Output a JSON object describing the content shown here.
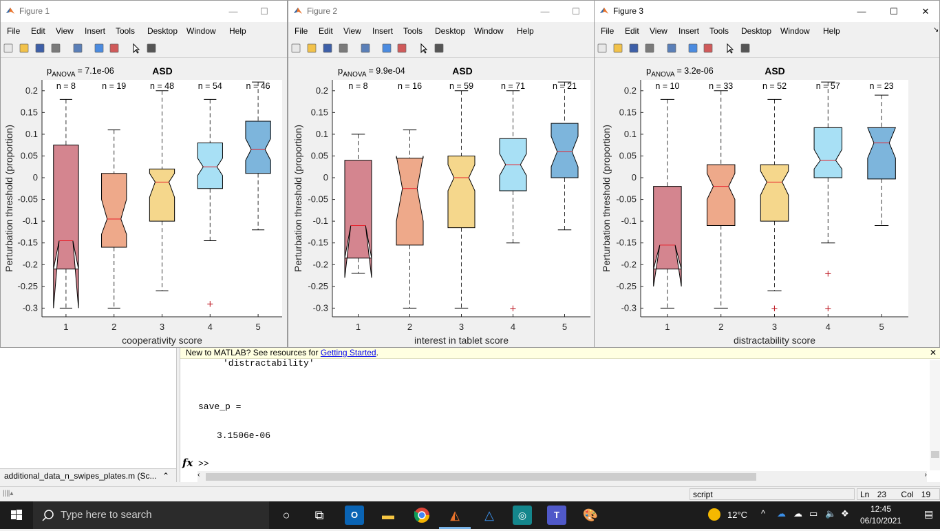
{
  "menus": [
    "File",
    "Edit",
    "View",
    "Insert",
    "Tools",
    "Desktop",
    "Window",
    "Help"
  ],
  "figures": [
    {
      "title": "Figure 1",
      "panel_title": "ASD",
      "p_label": "p",
      "p_sub": "ANOVA",
      "p_value": "= 7.1e-06",
      "xlabel": "cooperativity score",
      "ylabel": "Perturbation threshold (proportion)",
      "chart_data": {
        "type": "box",
        "categories": [
          "1",
          "2",
          "3",
          "4",
          "5"
        ],
        "n_labels": [
          "n = 8",
          "n = 19",
          "n = 48",
          "n = 54",
          "n = 46"
        ],
        "ylim": [
          -0.32,
          0.225
        ],
        "yticks": [
          "0.2",
          "0.15",
          "0.1",
          "0.05",
          "0",
          "-0.05",
          "-0.1",
          "-0.15",
          "-0.2",
          "-0.25",
          "-0.3"
        ],
        "boxes": [
          {
            "whisker_low": -0.3,
            "q1": -0.21,
            "median": -0.145,
            "q3": 0.075,
            "whisker_high": 0.18,
            "notch_low": -0.3,
            "notch_high": -0.21,
            "color": "#d4858f",
            "outliers": []
          },
          {
            "whisker_low": -0.3,
            "q1": -0.16,
            "median": -0.095,
            "q3": 0.01,
            "whisker_high": 0.11,
            "notch_low": -0.13,
            "notch_high": -0.05,
            "color": "#eea98a",
            "outliers": []
          },
          {
            "whisker_low": -0.26,
            "q1": -0.1,
            "median": -0.01,
            "q3": 0.02,
            "whisker_high": 0.2,
            "notch_low": -0.045,
            "notch_high": 0.01,
            "color": "#f5d78c",
            "outliers": []
          },
          {
            "whisker_low": -0.145,
            "q1": -0.025,
            "median": 0.025,
            "q3": 0.08,
            "whisker_high": 0.18,
            "notch_low": 0.005,
            "notch_high": 0.045,
            "color": "#a8e0f5",
            "outliers": [
              -0.29
            ]
          },
          {
            "whisker_low": -0.12,
            "q1": 0.01,
            "median": 0.065,
            "q3": 0.13,
            "whisker_high": 0.22,
            "notch_low": 0.04,
            "notch_high": 0.09,
            "color": "#7db5dc",
            "outliers": []
          }
        ]
      }
    },
    {
      "title": "Figure 2",
      "panel_title": "ASD",
      "p_label": "p",
      "p_sub": "ANOVA",
      "p_value": "= 9.9e-04",
      "xlabel": "interest in tablet score",
      "ylabel": "Perturbation threshold (proportion)",
      "chart_data": {
        "type": "box",
        "categories": [
          "1",
          "2",
          "3",
          "4",
          "5"
        ],
        "n_labels": [
          "n = 8",
          "n = 16",
          "n = 59",
          "n = 71",
          "n = 21"
        ],
        "ylim": [
          -0.32,
          0.225
        ],
        "yticks": [
          "0.2",
          "0.15",
          "0.1",
          "0.05",
          "0",
          "-0.05",
          "-0.1",
          "-0.15",
          "-0.2",
          "-0.25",
          "-0.3"
        ],
        "boxes": [
          {
            "whisker_low": -0.22,
            "q1": -0.185,
            "median": -0.11,
            "q3": 0.04,
            "whisker_high": 0.1,
            "notch_low": -0.23,
            "notch_high": -0.185,
            "color": "#d4858f",
            "outliers": []
          },
          {
            "whisker_low": -0.3,
            "q1": -0.155,
            "median": -0.025,
            "q3": 0.045,
            "whisker_high": 0.11,
            "notch_low": -0.1,
            "notch_high": 0.05,
            "color": "#eea98a",
            "outliers": []
          },
          {
            "whisker_low": -0.3,
            "q1": -0.115,
            "median": 0.0,
            "q3": 0.05,
            "whisker_high": 0.2,
            "notch_low": -0.03,
            "notch_high": 0.03,
            "color": "#f5d78c",
            "outliers": []
          },
          {
            "whisker_low": -0.15,
            "q1": -0.03,
            "median": 0.03,
            "q3": 0.09,
            "whisker_high": 0.2,
            "notch_low": 0.005,
            "notch_high": 0.055,
            "color": "#a8e0f5",
            "outliers": [
              -0.3
            ]
          },
          {
            "whisker_low": -0.12,
            "q1": 0.0,
            "median": 0.06,
            "q3": 0.125,
            "whisker_high": 0.22,
            "notch_low": 0.025,
            "notch_high": 0.095,
            "color": "#7db5dc",
            "outliers": []
          }
        ]
      }
    },
    {
      "title": "Figure 3",
      "panel_title": "ASD",
      "p_label": "p",
      "p_sub": "ANOVA",
      "p_value": "= 3.2e-06",
      "xlabel": "distractability score",
      "ylabel": "Perturbation threshold (proportion)",
      "chart_data": {
        "type": "box",
        "categories": [
          "1",
          "2",
          "3",
          "4",
          "5"
        ],
        "n_labels": [
          "n = 10",
          "n = 33",
          "n = 52",
          "n = 57",
          "n = 23"
        ],
        "ylim": [
          -0.32,
          0.225
        ],
        "yticks": [
          "0.2",
          "0.15",
          "0.1",
          "0.05",
          "0",
          "-0.05",
          "-0.1",
          "-0.15",
          "-0.2",
          "-0.25",
          "-0.3"
        ],
        "boxes": [
          {
            "whisker_low": -0.3,
            "q1": -0.21,
            "median": -0.155,
            "q3": -0.02,
            "whisker_high": 0.18,
            "notch_low": -0.25,
            "notch_high": -0.21,
            "color": "#d4858f",
            "outliers": []
          },
          {
            "whisker_low": -0.3,
            "q1": -0.11,
            "median": -0.02,
            "q3": 0.03,
            "whisker_high": 0.2,
            "notch_low": -0.05,
            "notch_high": 0.01,
            "color": "#eea98a",
            "outliers": []
          },
          {
            "whisker_low": -0.26,
            "q1": -0.1,
            "median": -0.01,
            "q3": 0.03,
            "whisker_high": 0.18,
            "notch_low": -0.04,
            "notch_high": 0.015,
            "color": "#f5d78c",
            "outliers": [
              -0.3
            ]
          },
          {
            "whisker_low": -0.15,
            "q1": 0.0,
            "median": 0.04,
            "q3": 0.115,
            "whisker_high": 0.22,
            "notch_low": 0.02,
            "notch_high": 0.065,
            "color": "#a8e0f5",
            "outliers": [
              -0.22,
              -0.3
            ]
          },
          {
            "whisker_low": -0.11,
            "q1": -0.003,
            "median": 0.08,
            "q3": 0.115,
            "whisker_high": 0.19,
            "notch_low": 0.045,
            "notch_high": 0.115,
            "color": "#7db5dc",
            "outliers": []
          }
        ]
      }
    }
  ],
  "command_window": {
    "banner_text": "New to MATLAB? See resources for ",
    "banner_link": "Getting Started",
    "banner_end": ".",
    "line1": "'distractability'",
    "line2": "save_p =",
    "line3": "3.1506e-06",
    "prompt_fx": "fx",
    "prompt": ">>"
  },
  "left_file": "additional_data_n_swipes_plates.m  (Sc...",
  "status": {
    "mode": "script",
    "ln_label": "Ln",
    "ln": "23",
    "col_label": "Col",
    "col": "19"
  },
  "taskbar": {
    "search_placeholder": "Type here to search",
    "temperature": "12°C",
    "time": "12:45",
    "date": "06/10/2021"
  },
  "colors": {
    "median": "#e8202a",
    "outlier": "#c0202a",
    "taskbar": "#1c1c1c"
  }
}
